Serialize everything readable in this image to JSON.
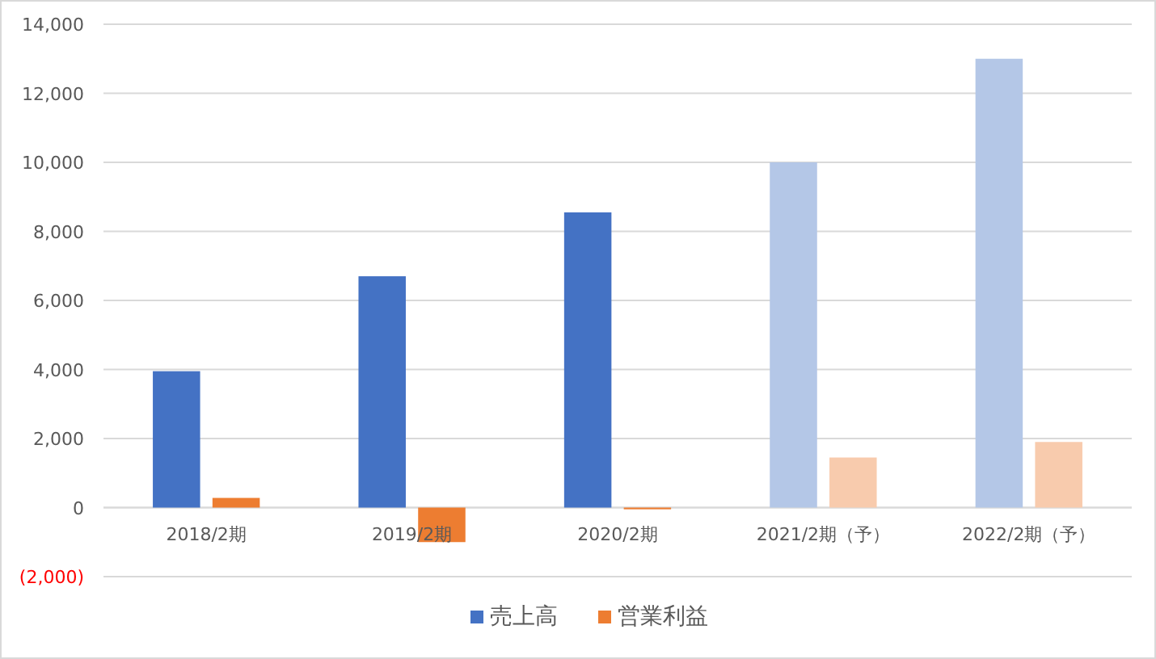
{
  "chart_data": {
    "type": "bar",
    "categories": [
      "2018/2期",
      "2019/2期",
      "2020/2期",
      "2021/2期（予）",
      "2022/2期（予）"
    ],
    "series": [
      {
        "name": "売上高",
        "color": "#4472c4",
        "colors": [
          "#4472c4",
          "#4472c4",
          "#4472c4",
          "#b4c7e7",
          "#b4c7e7"
        ],
        "values": [
          3950,
          6700,
          8550,
          10000,
          13000
        ]
      },
      {
        "name": "営業利益",
        "color": "#ed7d31",
        "colors": [
          "#ed7d31",
          "#ed7d31",
          "#ed7d31",
          "#f8cbad",
          "#f8cbad"
        ],
        "values": [
          280,
          -1000,
          -50,
          1450,
          1900
        ]
      }
    ],
    "ylim": [
      -2000,
      14000
    ],
    "yticks": [
      {
        "value": -2000,
        "label": "(2,000)"
      },
      {
        "value": 0,
        "label": "0"
      },
      {
        "value": 2000,
        "label": "2,000"
      },
      {
        "value": 4000,
        "label": "4,000"
      },
      {
        "value": 6000,
        "label": "6,000"
      },
      {
        "value": 8000,
        "label": "8,000"
      },
      {
        "value": 10000,
        "label": "10,000"
      },
      {
        "value": 12000,
        "label": "12,000"
      },
      {
        "value": 14000,
        "label": "14,000"
      }
    ],
    "grid": "y",
    "legend": "bottom"
  }
}
